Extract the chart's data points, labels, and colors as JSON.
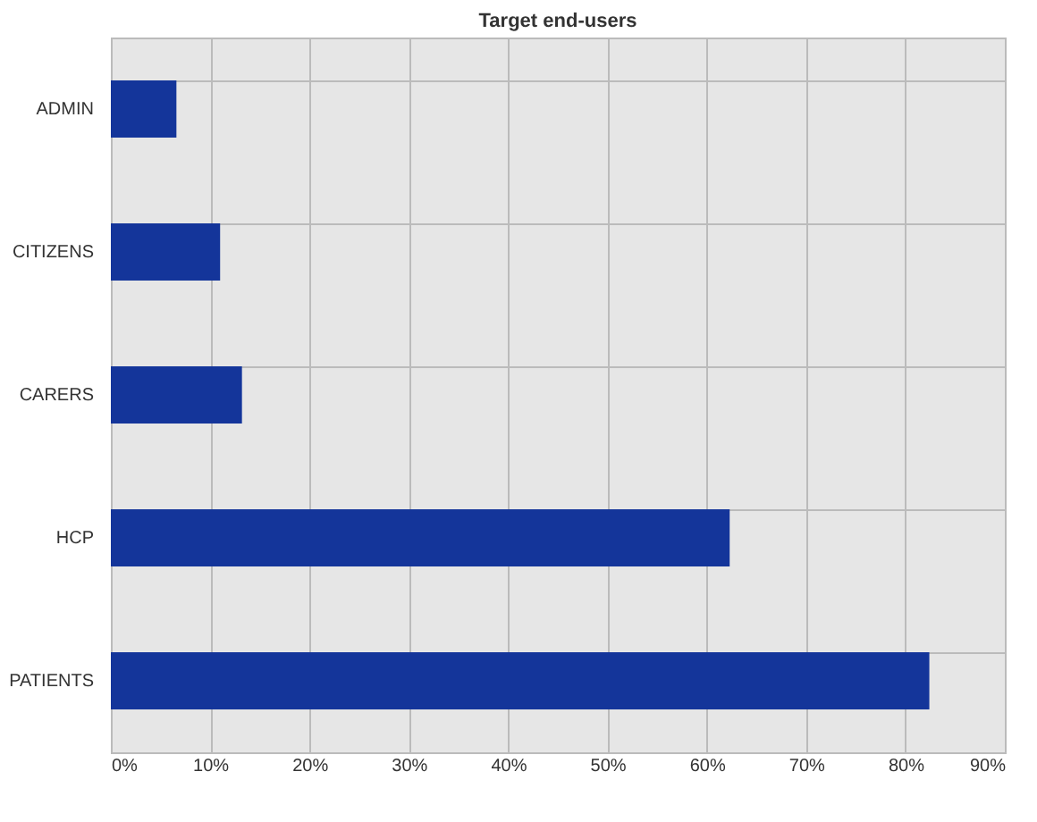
{
  "chart_data": {
    "type": "bar",
    "orientation": "horizontal",
    "title": "Target end-users",
    "categories": [
      "ADMIN",
      "CITIZENS",
      "CARERS",
      "HCP",
      "PATIENTS"
    ],
    "values": [
      6.6,
      11.0,
      13.2,
      62.3,
      82.4
    ],
    "color": "#14359a",
    "xlim": [
      0,
      90
    ],
    "xticks": [
      {
        "value": 0,
        "label": "0%"
      },
      {
        "value": 10,
        "label": "10%"
      },
      {
        "value": 20,
        "label": "20%"
      },
      {
        "value": 30,
        "label": "30%"
      },
      {
        "value": 40,
        "label": "40%"
      },
      {
        "value": 50,
        "label": "50%"
      },
      {
        "value": 60,
        "label": "60%"
      },
      {
        "value": 70,
        "label": "70%"
      },
      {
        "value": 80,
        "label": "80%"
      },
      {
        "value": 90,
        "label": "90%"
      }
    ],
    "grid": true
  }
}
